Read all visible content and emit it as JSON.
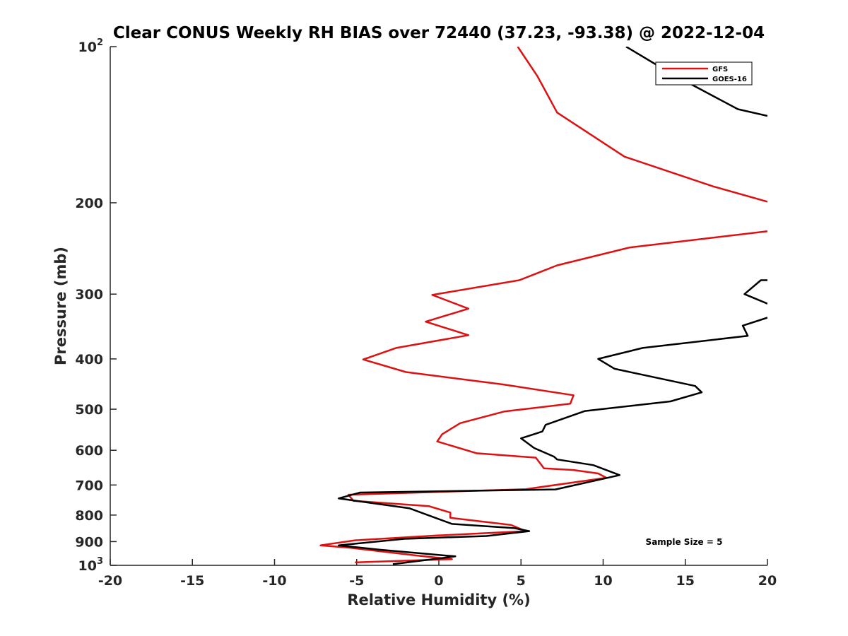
{
  "chart_data": {
    "type": "line",
    "title": "Clear CONUS Weekly RH BIAS over 72440 (37.23, -93.38) @ 2022-12-04",
    "xlabel": "Relative Humidity (%)",
    "ylabel": "Pressure (mb)",
    "xlim": [
      -20,
      20
    ],
    "ylim": [
      100,
      1000
    ],
    "yscale": "log",
    "y_reversed": true,
    "grid": false,
    "legend_position": "top-right",
    "x_ticks": [
      {
        "value": -20,
        "label": "-20"
      },
      {
        "value": -15,
        "label": "-15"
      },
      {
        "value": -10,
        "label": "-10"
      },
      {
        "value": -5,
        "label": "-5"
      },
      {
        "value": 0,
        "label": "0"
      },
      {
        "value": 5,
        "label": "5"
      },
      {
        "value": 10,
        "label": "10"
      },
      {
        "value": 15,
        "label": "15"
      },
      {
        "value": 20,
        "label": "20"
      }
    ],
    "y_ticks": [
      {
        "value": 100,
        "base": "10",
        "exp": "2"
      },
      {
        "value": 200,
        "base": "200",
        "exp": ""
      },
      {
        "value": 300,
        "base": "300",
        "exp": ""
      },
      {
        "value": 400,
        "base": "400",
        "exp": ""
      },
      {
        "value": 500,
        "base": "500",
        "exp": ""
      },
      {
        "value": 600,
        "base": "600",
        "exp": ""
      },
      {
        "value": 700,
        "base": "700",
        "exp": ""
      },
      {
        "value": 800,
        "base": "800",
        "exp": ""
      },
      {
        "value": 900,
        "base": "900",
        "exp": ""
      },
      {
        "value": 1000,
        "base": "10",
        "exp": "3"
      }
    ],
    "annotation": "Sample Size = 5",
    "series": [
      {
        "name": "GFS",
        "color": "#dd1111",
        "points": [
          [
            4.8,
            100
          ],
          [
            6.0,
            114
          ],
          [
            7.2,
            134
          ],
          [
            11.3,
            163
          ],
          [
            16.7,
            186
          ],
          [
            20.0,
            199
          ],
          [
            null,
            null
          ],
          [
            20.0,
            227
          ],
          [
            11.6,
            244
          ],
          [
            7.2,
            264
          ],
          [
            4.9,
            282
          ],
          [
            -0.4,
            301
          ],
          [
            1.8,
            320
          ],
          [
            -0.8,
            339
          ],
          [
            1.8,
            360
          ],
          [
            -2.6,
            381
          ],
          [
            -4.6,
            401
          ],
          [
            -2.0,
            424
          ],
          [
            3.9,
            448
          ],
          [
            8.2,
            470
          ],
          [
            8.0,
            488
          ],
          [
            4.0,
            505
          ],
          [
            1.3,
            532
          ],
          [
            0.2,
            559
          ],
          [
            -0.1,
            577
          ],
          [
            2.3,
            608
          ],
          [
            5.9,
            620
          ],
          [
            6.4,
            650
          ],
          [
            8.2,
            655
          ],
          [
            9.7,
            665
          ],
          [
            10.2,
            678
          ],
          [
            5.3,
            713
          ],
          [
            -5.5,
            731
          ],
          [
            -5.2,
            751
          ],
          [
            -0.6,
            769
          ],
          [
            0.7,
            791
          ],
          [
            0.7,
            810
          ],
          [
            4.4,
            836
          ],
          [
            5.3,
            859
          ],
          [
            -0.1,
            876
          ],
          [
            -5.1,
            895
          ],
          [
            -7.2,
            915
          ],
          [
            -5.4,
            925
          ],
          [
            -1.3,
            958
          ],
          [
            0.8,
            973
          ],
          [
            -5.1,
            987
          ]
        ]
      },
      {
        "name": "GOES-16",
        "color": "#000000",
        "points": [
          [
            11.4,
            100
          ],
          [
            14.2,
            113
          ],
          [
            18.2,
            132
          ],
          [
            20.0,
            136
          ],
          [
            null,
            null
          ],
          [
            20.0,
            282
          ],
          [
            19.6,
            282
          ],
          [
            18.6,
            300
          ],
          [
            20.0,
            313
          ],
          [
            null,
            null
          ],
          [
            20.0,
            333
          ],
          [
            18.5,
            345
          ],
          [
            18.8,
            361
          ],
          [
            12.4,
            381
          ],
          [
            9.7,
            400
          ],
          [
            10.7,
            418
          ],
          [
            15.6,
            451
          ],
          [
            16.0,
            464
          ],
          [
            14.1,
            483
          ],
          [
            8.9,
            504
          ],
          [
            6.5,
            536
          ],
          [
            6.3,
            552
          ],
          [
            5.0,
            569
          ],
          [
            5.8,
            594
          ],
          [
            7.0,
            617
          ],
          [
            7.2,
            625
          ],
          [
            9.4,
            641
          ],
          [
            11.0,
            670
          ],
          [
            7.1,
            714
          ],
          [
            -4.8,
            724
          ],
          [
            -6.1,
            743
          ],
          [
            -1.8,
            776
          ],
          [
            -0.4,
            806
          ],
          [
            0.8,
            832
          ],
          [
            4.6,
            848
          ],
          [
            5.5,
            859
          ],
          [
            2.9,
            878
          ],
          [
            -2.1,
            889
          ],
          [
            -6.1,
            915
          ],
          [
            -3.6,
            933
          ],
          [
            1.0,
            961
          ],
          [
            -2.8,
            995
          ]
        ]
      }
    ]
  }
}
